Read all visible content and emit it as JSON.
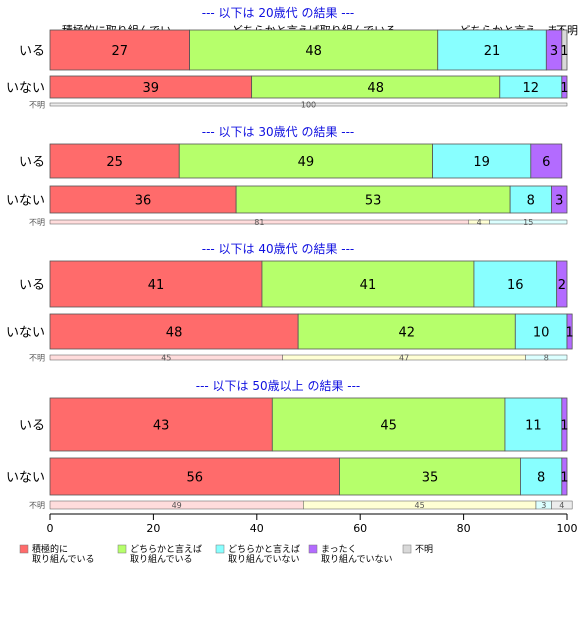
{
  "colors": {
    "title": "#1010e0",
    "bar_outline": "#555555",
    "axis": "#000000",
    "segments": [
      "#ff6b6b",
      "#b6ff6b",
      "#88ffff",
      "#b36bff",
      "#d9d9d9"
    ],
    "thin_segments": [
      "#ffdcdc",
      "#ffffd4",
      "#dcffff",
      "#ecdcff",
      "#ececec"
    ]
  },
  "top_labels": [
    "積極的に取り組んでい..",
    "どちらかと言えば取り組んでいる",
    "どちらかと言え.. ま..",
    "不明"
  ],
  "chart_data": {
    "type": "bar",
    "orientation": "horizontal",
    "stacked": true,
    "xlim": [
      0,
      100
    ],
    "xticks": [
      "0",
      "20",
      "40",
      "60",
      "80",
      "100"
    ],
    "legend": {
      "placement": "bottom",
      "entries": [
        "積極的に\n取り組んでいる",
        "どちらかと言えば\n取り組んでいる",
        "どちらかと言えば\n取り組んでいない",
        "まったく\n取り組んでいない",
        "不明"
      ]
    },
    "groups": [
      {
        "title": "--- 以下は 20歳代 の結果 ---",
        "rows": [
          {
            "label": "いる",
            "values": [
              27,
              48,
              21,
              3,
              1
            ],
            "labels": [
              "27",
              "48",
              "21",
              "3",
              "1"
            ]
          },
          {
            "label": "いない",
            "values": [
              39,
              48,
              12,
              1,
              0
            ],
            "labels": [
              "39",
              "48",
              "12",
              "1",
              ""
            ]
          },
          {
            "label": "不明",
            "thin": true,
            "values": [
              0,
              0,
              0,
              0,
              100
            ],
            "labels": [
              "",
              "",
              "",
              "",
              "100"
            ]
          }
        ]
      },
      {
        "title": "--- 以下は 30歳代 の結果 ---",
        "rows": [
          {
            "label": "いる",
            "values": [
              25,
              49,
              19,
              6,
              0
            ],
            "labels": [
              "25",
              "49",
              "19",
              "6",
              ""
            ]
          },
          {
            "label": "いない",
            "values": [
              36,
              53,
              8,
              3,
              0
            ],
            "labels": [
              "36",
              "53",
              "8",
              "3",
              ""
            ]
          },
          {
            "label": "不明",
            "thin": true,
            "values": [
              81,
              4,
              15,
              0,
              0
            ],
            "labels": [
              "81",
              "4",
              "15",
              "",
              ""
            ]
          }
        ]
      },
      {
        "title": "--- 以下は 40歳代 の結果 ---",
        "rows": [
          {
            "label": "いる",
            "values": [
              41,
              41,
              16,
              2,
              0
            ],
            "labels": [
              "41",
              "41",
              "16",
              "2",
              ""
            ]
          },
          {
            "label": "いない",
            "values": [
              48,
              42,
              10,
              1,
              0
            ],
            "labels": [
              "48",
              "42",
              "10",
              "1",
              ""
            ]
          },
          {
            "label": "不明",
            "thin": true,
            "values": [
              45,
              47,
              8,
              0,
              0
            ],
            "labels": [
              "45",
              "47",
              "8",
              "",
              ""
            ]
          }
        ]
      },
      {
        "title": "--- 以下は 50歳以上 の結果 ---",
        "rows": [
          {
            "label": "いる",
            "values": [
              43,
              45,
              11,
              1,
              0
            ],
            "labels": [
              "43",
              "45",
              "11",
              "1",
              ""
            ]
          },
          {
            "label": "いない",
            "values": [
              56,
              35,
              8,
              1,
              0
            ],
            "labels": [
              "56",
              "35",
              "8",
              "1",
              ""
            ]
          },
          {
            "label": "不明",
            "thin": true,
            "values": [
              49,
              45,
              3,
              0,
              4
            ],
            "labels": [
              "49",
              "45",
              "3",
              "",
              "4"
            ]
          }
        ]
      }
    ]
  }
}
